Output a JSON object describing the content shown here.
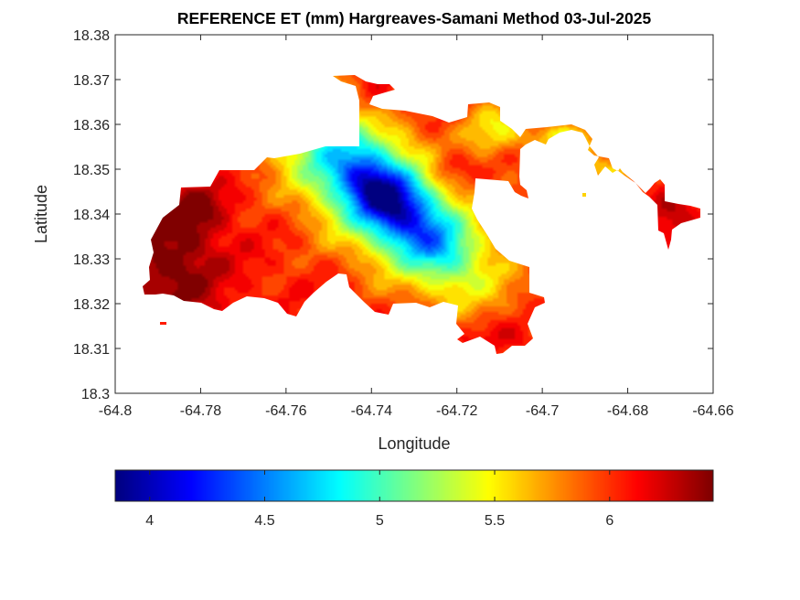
{
  "chart_data": {
    "type": "heatmap",
    "title": "REFERENCE ET (mm) Hargreaves-Samani Method  03-Jul-2025",
    "xlabel": "Longitude",
    "ylabel": "Latitude",
    "xlim": [
      -64.8,
      -64.66
    ],
    "ylim": [
      18.3,
      18.38
    ],
    "x_ticks": [
      -64.8,
      -64.78,
      -64.76,
      -64.74,
      -64.72,
      -64.7,
      -64.68,
      -64.66
    ],
    "x_tick_labels": [
      "-64.8",
      "-64.78",
      "-64.76",
      "-64.74",
      "-64.72",
      "-64.7",
      "-64.68",
      "-64.66"
    ],
    "y_ticks": [
      18.3,
      18.31,
      18.32,
      18.33,
      18.34,
      18.35,
      18.36,
      18.37,
      18.38
    ],
    "y_tick_labels": [
      "18.3",
      "18.31",
      "18.32",
      "18.33",
      "18.34",
      "18.35",
      "18.36",
      "18.37",
      "18.38"
    ],
    "colorbar": {
      "colormap": "jet",
      "placement": "bottom",
      "range": [
        3.85,
        6.45
      ],
      "ticks": [
        4,
        4.5,
        5,
        5.5,
        6
      ],
      "tick_labels": [
        "4",
        "4.5",
        "5",
        "5.5",
        "6"
      ]
    },
    "colormap_stops": [
      "#00008f",
      "#0000ff",
      "#00ffff",
      "#ffff00",
      "#ff0000",
      "#800000"
    ],
    "grid": false,
    "field": {
      "background_value": 6.0,
      "features": [
        {
          "name": "low center",
          "lon": -64.739,
          "lat": 18.3445,
          "value": 3.9
        },
        {
          "name": "low band",
          "lon": -64.728,
          "lat": 18.335,
          "value": 4.2
        },
        {
          "name": "west high",
          "lon": -64.79,
          "lat": 18.325,
          "value": 6.45
        },
        {
          "name": "southeast high",
          "lon": -64.715,
          "lat": 18.313,
          "value": 6.3
        },
        {
          "name": "northeast ridge",
          "lon": -64.712,
          "lat": 18.362,
          "value": 5.5
        },
        {
          "name": "east arm",
          "lon": -64.692,
          "lat": 18.358,
          "value": 5.4
        },
        {
          "name": "north inlet",
          "lon": -64.72,
          "lat": 18.349,
          "value": 6.4
        }
      ]
    }
  }
}
